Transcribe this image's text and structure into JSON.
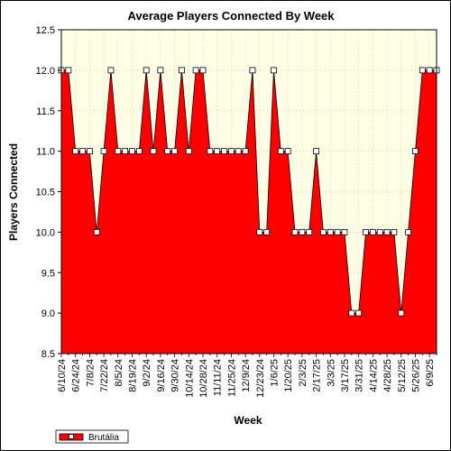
{
  "chart_data": {
    "type": "area",
    "title": "Average Players Connected By Week",
    "xlabel": "Week",
    "ylabel": "Players Connected",
    "ylim": [
      8.5,
      12.5
    ],
    "yticks": [
      "12.5",
      "12.0",
      "11.5",
      "11.0",
      "10.5",
      "10.0",
      "9.5",
      "9.0",
      "8.5"
    ],
    "xtick_labels": [
      "6/10/24",
      "6/24/24",
      "7/8/24",
      "7/22/24",
      "8/5/24",
      "8/19/24",
      "9/2/24",
      "9/16/24",
      "9/30/24",
      "10/14/24",
      "10/28/24",
      "11/11/24",
      "11/25/24",
      "12/9/24",
      "12/23/24",
      "1/6/25",
      "1/20/25",
      "2/3/25",
      "2/17/25",
      "3/3/25",
      "3/17/25",
      "3/31/25",
      "4/14/25",
      "4/28/25",
      "5/12/25",
      "5/26/25",
      "6/9/25"
    ],
    "grid": true,
    "legend_position": "bottom-left",
    "colors": {
      "plot_background": "#ffffe6",
      "area_fill": "#ff0000",
      "line": "#000000",
      "marker_fill": "#ffffff",
      "grid": "#c8c8a0"
    },
    "series": [
      {
        "name": "Brutália",
        "x": [
          "6/10/24",
          "6/17/24",
          "6/24/24",
          "7/1/24",
          "7/8/24",
          "7/15/24",
          "7/22/24",
          "7/29/24",
          "8/5/24",
          "8/12/24",
          "8/19/24",
          "8/26/24",
          "9/2/24",
          "9/9/24",
          "9/16/24",
          "9/23/24",
          "9/30/24",
          "10/7/24",
          "10/14/24",
          "10/21/24",
          "10/28/24",
          "11/4/24",
          "11/11/24",
          "11/18/24",
          "11/25/24",
          "12/2/24",
          "12/9/24",
          "12/16/24",
          "12/23/24",
          "12/30/24",
          "1/6/25",
          "1/13/25",
          "1/20/25",
          "1/27/25",
          "2/3/25",
          "2/10/25",
          "2/17/25",
          "2/24/25",
          "3/3/25",
          "3/10/25",
          "3/17/25",
          "3/24/25",
          "3/31/25",
          "4/7/25",
          "4/14/25",
          "4/21/25",
          "4/28/25",
          "5/5/25",
          "5/12/25",
          "5/19/25",
          "5/26/25",
          "6/2/25",
          "6/9/25",
          "6/16/25"
        ],
        "values": [
          12,
          12,
          11,
          11,
          11,
          10,
          11,
          12,
          11,
          11,
          11,
          11,
          12,
          11,
          12,
          11,
          11,
          12,
          11,
          12,
          12,
          11,
          11,
          11,
          11,
          11,
          11,
          12,
          10,
          10,
          12,
          11,
          11,
          10,
          10,
          10,
          11,
          10,
          10,
          10,
          10,
          9,
          9,
          10,
          10,
          10,
          10,
          10,
          9,
          10,
          11,
          12,
          12,
          12
        ]
      }
    ]
  }
}
